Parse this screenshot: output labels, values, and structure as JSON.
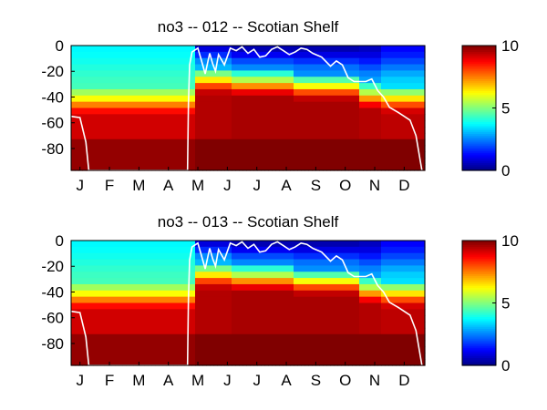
{
  "chart_data": [
    {
      "type": "heatmap",
      "title": "no3 -- 012 -- Scotian Shelf",
      "xlabel": "",
      "ylabel": "",
      "x_ticks": [
        "J",
        "F",
        "M",
        "A",
        "M",
        "J",
        "J",
        "A",
        "S",
        "O",
        "N",
        "D"
      ],
      "y_ticks": [
        "0",
        "-20",
        "-40",
        "-60",
        "-80"
      ],
      "ylim": [
        -97,
        0
      ],
      "colorbar": {
        "min": 0,
        "max": 10,
        "ticks": [
          "0",
          "5",
          "10"
        ],
        "colormap": "jet"
      },
      "grid": false,
      "bands": [
        {
          "from_month": 0.0,
          "to_month": 4.2,
          "surface": 3.7,
          "mld": -42,
          "deep": 9.2
        },
        {
          "from_month": 4.2,
          "to_month": 5.5,
          "surface": 0.8,
          "mld": -25,
          "deep": 9.5
        },
        {
          "from_month": 5.5,
          "to_month": 7.5,
          "surface": 0.4,
          "mld": -27,
          "deep": 9.6
        },
        {
          "from_month": 7.5,
          "to_month": 9.8,
          "surface": 0.4,
          "mld": -30,
          "deep": 9.6
        },
        {
          "from_month": 9.8,
          "to_month": 10.5,
          "surface": 0.6,
          "mld": -37,
          "deep": 9.5
        },
        {
          "from_month": 10.5,
          "to_month": 12.0,
          "surface": 1.2,
          "mld": -40,
          "deep": 9.4
        }
      ],
      "mixed_layer_line": [
        [
          0,
          -55
        ],
        [
          0.3,
          -56
        ],
        [
          0.5,
          -75
        ],
        [
          0.6,
          -97
        ],
        [
          3.95,
          -97
        ],
        [
          3.98,
          -45
        ],
        [
          4.02,
          -15
        ],
        [
          4.1,
          -5
        ],
        [
          4.3,
          -2
        ],
        [
          4.4,
          -10
        ],
        [
          4.55,
          -22
        ],
        [
          4.7,
          -6
        ],
        [
          4.8,
          -14
        ],
        [
          4.9,
          -20
        ],
        [
          5.0,
          -7
        ],
        [
          5.2,
          -15
        ],
        [
          5.4,
          -2
        ],
        [
          5.6,
          -4
        ],
        [
          5.8,
          -1
        ],
        [
          6.0,
          -6
        ],
        [
          6.2,
          -3
        ],
        [
          6.4,
          -9
        ],
        [
          6.6,
          -8
        ],
        [
          6.8,
          -3
        ],
        [
          7.0,
          -1
        ],
        [
          7.2,
          -4
        ],
        [
          7.4,
          -7
        ],
        [
          7.6,
          -5
        ],
        [
          7.8,
          -2
        ],
        [
          8.0,
          -3
        ],
        [
          8.2,
          -6
        ],
        [
          8.5,
          -9
        ],
        [
          8.8,
          -16
        ],
        [
          9.0,
          -12
        ],
        [
          9.2,
          -15
        ],
        [
          9.4,
          -25
        ],
        [
          9.6,
          -28
        ],
        [
          10.0,
          -28
        ],
        [
          10.2,
          -26
        ],
        [
          10.4,
          -35
        ],
        [
          10.6,
          -40
        ],
        [
          10.8,
          -48
        ],
        [
          11.1,
          -52
        ],
        [
          11.5,
          -58
        ],
        [
          11.7,
          -70
        ],
        [
          11.85,
          -90
        ],
        [
          11.9,
          -97
        ]
      ]
    },
    {
      "type": "heatmap",
      "title": "no3 -- 013 -- Scotian Shelf",
      "xlabel": "",
      "ylabel": "",
      "x_ticks": [
        "J",
        "F",
        "M",
        "A",
        "M",
        "J",
        "J",
        "A",
        "S",
        "O",
        "N",
        "D"
      ],
      "y_ticks": [
        "0",
        "-20",
        "-40",
        "-60",
        "-80"
      ],
      "ylim": [
        -97,
        0
      ],
      "colorbar": {
        "min": 0,
        "max": 10,
        "ticks": [
          "0",
          "5",
          "10"
        ],
        "colormap": "jet"
      },
      "grid": false,
      "bands": [
        {
          "from_month": 0.0,
          "to_month": 4.2,
          "surface": 3.7,
          "mld": -42,
          "deep": 9.2
        },
        {
          "from_month": 4.2,
          "to_month": 5.5,
          "surface": 0.8,
          "mld": -25,
          "deep": 9.5
        },
        {
          "from_month": 5.5,
          "to_month": 7.5,
          "surface": 0.4,
          "mld": -27,
          "deep": 9.6
        },
        {
          "from_month": 7.5,
          "to_month": 9.8,
          "surface": 0.4,
          "mld": -30,
          "deep": 9.6
        },
        {
          "from_month": 9.8,
          "to_month": 10.5,
          "surface": 0.6,
          "mld": -37,
          "deep": 9.5
        },
        {
          "from_month": 10.5,
          "to_month": 12.0,
          "surface": 1.2,
          "mld": -40,
          "deep": 9.4
        }
      ],
      "mixed_layer_line": [
        [
          0,
          -55
        ],
        [
          0.3,
          -56
        ],
        [
          0.5,
          -75
        ],
        [
          0.6,
          -97
        ],
        [
          3.95,
          -97
        ],
        [
          3.98,
          -45
        ],
        [
          4.02,
          -15
        ],
        [
          4.1,
          -5
        ],
        [
          4.3,
          -2
        ],
        [
          4.4,
          -10
        ],
        [
          4.55,
          -22
        ],
        [
          4.7,
          -6
        ],
        [
          4.8,
          -14
        ],
        [
          4.9,
          -20
        ],
        [
          5.0,
          -7
        ],
        [
          5.2,
          -15
        ],
        [
          5.4,
          -2
        ],
        [
          5.6,
          -4
        ],
        [
          5.8,
          -1
        ],
        [
          6.0,
          -6
        ],
        [
          6.2,
          -3
        ],
        [
          6.4,
          -9
        ],
        [
          6.6,
          -8
        ],
        [
          6.8,
          -3
        ],
        [
          7.0,
          -1
        ],
        [
          7.2,
          -4
        ],
        [
          7.4,
          -7
        ],
        [
          7.6,
          -5
        ],
        [
          7.8,
          -2
        ],
        [
          8.0,
          -3
        ],
        [
          8.2,
          -6
        ],
        [
          8.5,
          -9
        ],
        [
          8.8,
          -16
        ],
        [
          9.0,
          -12
        ],
        [
          9.2,
          -15
        ],
        [
          9.4,
          -25
        ],
        [
          9.6,
          -28
        ],
        [
          10.0,
          -28
        ],
        [
          10.2,
          -26
        ],
        [
          10.4,
          -35
        ],
        [
          10.6,
          -40
        ],
        [
          10.8,
          -48
        ],
        [
          11.1,
          -52
        ],
        [
          11.5,
          -58
        ],
        [
          11.7,
          -70
        ],
        [
          11.85,
          -90
        ],
        [
          11.9,
          -97
        ]
      ]
    }
  ]
}
